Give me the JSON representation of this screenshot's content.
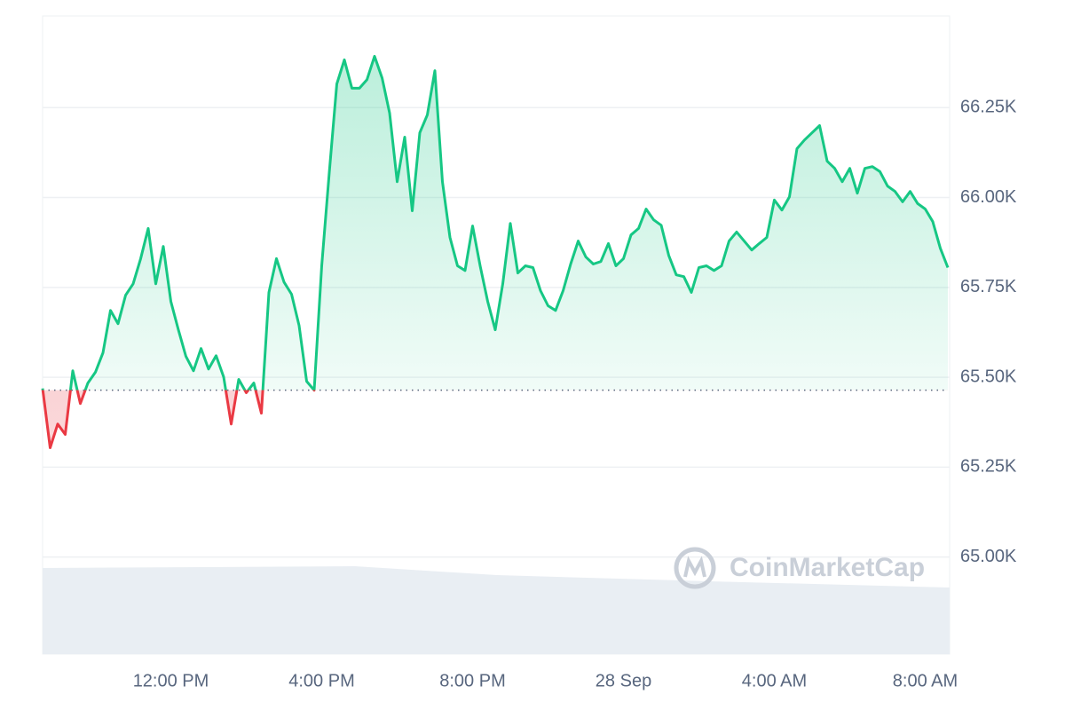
{
  "chart_data": {
    "type": "line",
    "watermark": "CoinMarketCap",
    "x": [
      8.6,
      8.8,
      9.0,
      9.2,
      9.4,
      9.6,
      9.8,
      10.0,
      10.2,
      10.4,
      10.6,
      10.8,
      11.0,
      11.2,
      11.4,
      11.6,
      11.8,
      12.0,
      12.2,
      12.4,
      12.6,
      12.8,
      13.0,
      13.2,
      13.4,
      13.6,
      13.8,
      14.0,
      14.2,
      14.4,
      14.6,
      14.8,
      15.0,
      15.2,
      15.4,
      15.6,
      15.8,
      16.0,
      16.2,
      16.4,
      16.6,
      16.8,
      17.0,
      17.2,
      17.4,
      17.6,
      17.8,
      18.0,
      18.2,
      18.4,
      18.6,
      18.8,
      19.0,
      19.2,
      19.4,
      19.6,
      19.8,
      20.0,
      20.2,
      20.4,
      20.6,
      20.8,
      21.0,
      21.2,
      21.4,
      21.6,
      21.8,
      22.0,
      22.2,
      22.4,
      22.6,
      22.8,
      23.0,
      23.2,
      23.4,
      23.6,
      23.8,
      24.0,
      24.2,
      24.4,
      24.6,
      24.8,
      25.0,
      25.2,
      25.4,
      25.6,
      25.8,
      26.0,
      26.2,
      26.4,
      26.6,
      26.8,
      27.0,
      27.2,
      27.4,
      27.6,
      27.8,
      28.0,
      28.2,
      28.4,
      28.6,
      28.8,
      29.0,
      29.2,
      29.4,
      29.6,
      29.8,
      30.0,
      30.2,
      30.4,
      30.6,
      30.8,
      31.0,
      31.2,
      31.4,
      31.6,
      31.8,
      32.0,
      32.2,
      32.4,
      32.6
    ],
    "series": [
      {
        "values": [
          65469,
          65304,
          65370,
          65341,
          65518,
          65427,
          65484,
          65514,
          65568,
          65686,
          65649,
          65728,
          65760,
          65830,
          65914,
          65760,
          65864,
          65711,
          65632,
          65558,
          65518,
          65580,
          65523,
          65560,
          65501,
          65370,
          65494,
          65457,
          65484,
          65400,
          65736,
          65830,
          65765,
          65731,
          65644,
          65489,
          65464,
          65810,
          66069,
          66316,
          66383,
          66304,
          66304,
          66328,
          66393,
          66333,
          66235,
          66044,
          66168,
          65963,
          66180,
          66230,
          66353,
          66044,
          65889,
          65810,
          65797,
          65921,
          65810,
          65711,
          65632,
          65760,
          65928,
          65790,
          65810,
          65805,
          65741,
          65699,
          65686,
          65741,
          65815,
          65879,
          65835,
          65815,
          65822,
          65872,
          65810,
          65830,
          65896,
          65914,
          65968,
          65938,
          65923,
          65839,
          65785,
          65780,
          65736,
          65805,
          65810,
          65797,
          65810,
          65879,
          65904,
          65879,
          65854,
          65872,
          65889,
          65993,
          65965,
          66002,
          66136,
          66160,
          66180,
          66200,
          66101,
          66081,
          66044,
          66081,
          66012,
          66081,
          66086,
          66072,
          66032,
          66017,
          65988,
          66017,
          65983,
          65968,
          65933,
          65859,
          65805
        ]
      }
    ],
    "up_color": "#16c784",
    "down_color": "#ea3943",
    "baseline": 65464,
    "xlim": [
      8.6,
      32.6
    ],
    "ylim": [
      64730,
      66505
    ],
    "xticks": [
      {
        "value": 12,
        "label": "12:00 PM"
      },
      {
        "value": 16,
        "label": "4:00 PM"
      },
      {
        "value": 20,
        "label": "8:00 PM"
      },
      {
        "value": 24,
        "label": "28 Sep"
      },
      {
        "value": 28,
        "label": "4:00 AM"
      },
      {
        "value": 32,
        "label": "8:00 AM"
      }
    ],
    "yticks": [
      {
        "value": 65000,
        "label": "65.00K"
      },
      {
        "value": 65250,
        "label": "65.25K"
      },
      {
        "value": 65500,
        "label": "65.50K"
      },
      {
        "value": 65750,
        "label": "65.75K"
      },
      {
        "value": 66000,
        "label": "66.00K"
      },
      {
        "value": 66250,
        "label": "66.25K"
      }
    ],
    "grid": true
  }
}
